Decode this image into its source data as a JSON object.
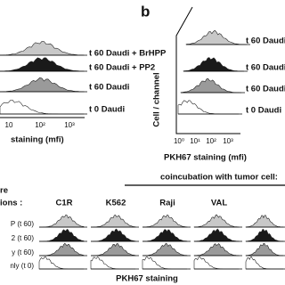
{
  "panel_a": {
    "labels": [
      "t 60 Daudi + BrHPP",
      "t 60 Daudi + PP2",
      "t 60 Daudi",
      "t 0 Daudi"
    ],
    "x_ticks": [
      "10",
      "10²",
      "10³"
    ],
    "x_axis_label": "staining (mfi)"
  },
  "panel_b": {
    "letter": "b",
    "y_axis_label": "Cell / channel",
    "labels": [
      "t 60 Daudi",
      "t 60 Daudi",
      "t 60 Daudi",
      "t 0 Daudi"
    ],
    "x_ticks": [
      "10⁰",
      "10¹",
      "10²",
      "10³"
    ],
    "x_axis_label": "PKH67 staining (mfi)"
  },
  "panel_c": {
    "header": "coincubation with tumor cell:",
    "side_title": [
      "re",
      "ions :"
    ],
    "columns": [
      "C1R",
      "K562",
      "Raji",
      "VAL"
    ],
    "rows": [
      "P (t 60)",
      "2 (t 60)",
      "y (t 60)",
      "nly (t 0)"
    ],
    "x_axis_label": "PKH67 staining"
  }
}
